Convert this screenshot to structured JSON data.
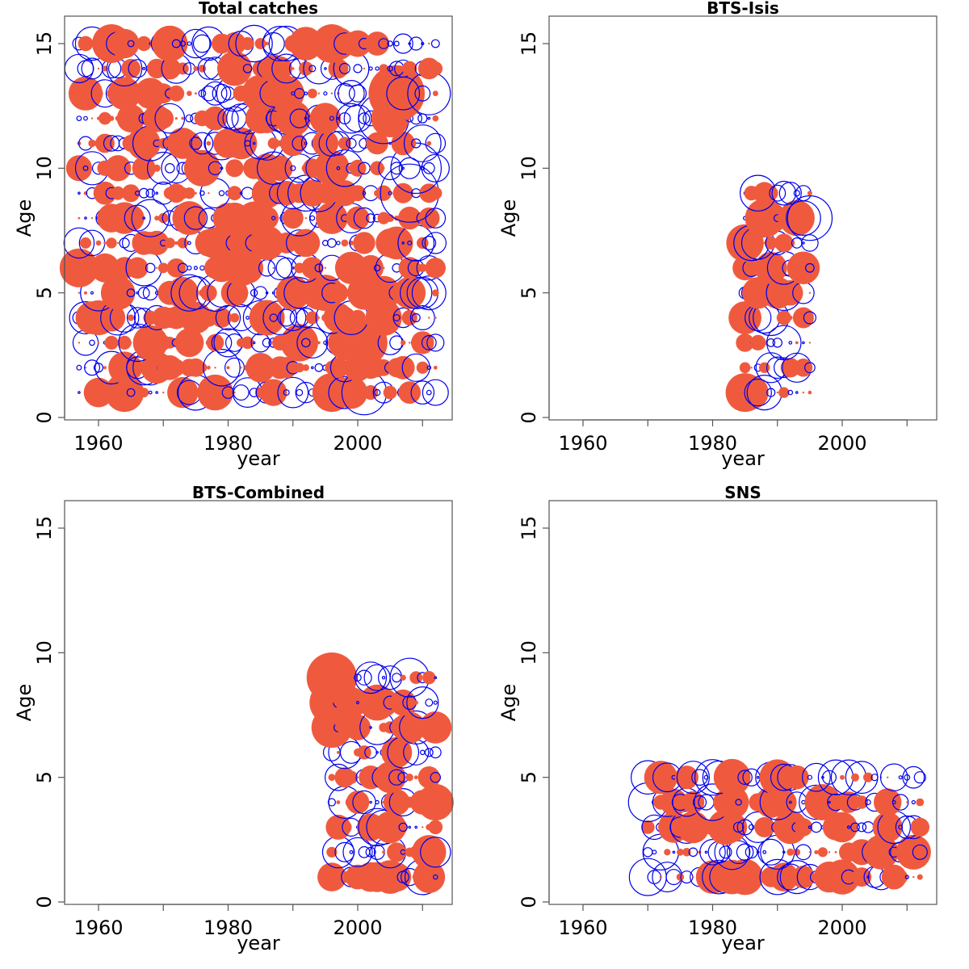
{
  "colors": {
    "positive": "#ef5a3f",
    "negative": "#0000ee",
    "frame": "#555555"
  },
  "chart_data": [
    {
      "type": "scatter",
      "title": "Total catches",
      "xlabel": "year",
      "ylabel": "Age",
      "xlim": [
        1955,
        2015
      ],
      "ylim": [
        0,
        16
      ],
      "xticks": [
        1960,
        1980,
        2000
      ],
      "yticks": [
        0,
        5,
        10,
        15
      ],
      "ages": [
        1,
        15
      ],
      "years": [
        1957,
        2012
      ],
      "encoding": "bubble size = |residual|; filled = positive, open = negative",
      "highlights": [
        {
          "x": 2008,
          "y": 9,
          "v": -3.0
        },
        {
          "x": 2006,
          "y": 13,
          "v": 2.9
        },
        {
          "x": 2009,
          "y": 10,
          "v": -2.6
        },
        {
          "x": 2004,
          "y": 12,
          "v": -2.6
        },
        {
          "x": 2001,
          "y": 3,
          "v": 2.4
        },
        {
          "x": 2001,
          "y": 1,
          "v": -2.3
        },
        {
          "x": 2011,
          "y": 13,
          "v": -2.2
        },
        {
          "x": 1996,
          "y": 15,
          "v": 2.0
        },
        {
          "x": 1962,
          "y": 15,
          "v": 2.0
        },
        {
          "x": 1964,
          "y": 1,
          "v": 2.0
        },
        {
          "x": 1996,
          "y": 1,
          "v": 2.0
        },
        {
          "x": 1957,
          "y": 6,
          "v": 2.0
        }
      ]
    },
    {
      "type": "scatter",
      "title": "BTS-Isis",
      "xlabel": "year",
      "ylabel": "Age",
      "xlim": [
        1955,
        2015
      ],
      "ylim": [
        0,
        16
      ],
      "xticks": [
        1960,
        1980,
        2000
      ],
      "yticks": [
        0,
        5,
        10,
        15
      ],
      "ages": [
        1,
        9
      ],
      "years": [
        1985,
        1995
      ],
      "encoding": "bubble size = |residual|; filled = positive, open = negative",
      "highlights": [
        {
          "x": 1995,
          "y": 8,
          "v": -2.3
        },
        {
          "x": 1985,
          "y": 1,
          "v": 2.0
        },
        {
          "x": 1988,
          "y": 8,
          "v": 2.0
        },
        {
          "x": 1991,
          "y": 6,
          "v": -1.7
        },
        {
          "x": 1993,
          "y": 2,
          "v": -1.5
        }
      ]
    },
    {
      "type": "scatter",
      "title": "BTS-Combined",
      "xlabel": "year",
      "ylabel": "Age",
      "xlim": [
        1955,
        2015
      ],
      "ylim": [
        0,
        16
      ],
      "xticks": [
        1960,
        1980,
        2000
      ],
      "yticks": [
        0,
        5,
        10,
        15
      ],
      "ages": [
        1,
        9
      ],
      "years": [
        1996,
        2012
      ],
      "encoding": "bubble size = |residual|; filled = positive, open = negative",
      "highlights": [
        {
          "x": 1996,
          "y": 9,
          "v": 2.6
        },
        {
          "x": 1996,
          "y": 8,
          "v": 2.3
        },
        {
          "x": 1996,
          "y": 7,
          "v": 2.1
        },
        {
          "x": 2008,
          "y": 9,
          "v": -2.0
        },
        {
          "x": 2006,
          "y": 1,
          "v": 1.5
        }
      ]
    },
    {
      "type": "scatter",
      "title": "SNS",
      "xlabel": "year",
      "ylabel": "Age",
      "xlim": [
        1955,
        2015
      ],
      "ylim": [
        0,
        16
      ],
      "xticks": [
        1960,
        1980,
        2000
      ],
      "yticks": [
        0,
        5,
        10,
        15
      ],
      "ages": [
        1,
        5
      ],
      "years": [
        1970,
        2012
      ],
      "encoding": "bubble size = |residual|; filled = positive, open = negative",
      "highlights": [
        {
          "x": 1970,
          "y": 4,
          "v": -2.0
        },
        {
          "x": 2001,
          "y": 5,
          "v": -1.8
        },
        {
          "x": 1983,
          "y": 5,
          "v": 1.9
        },
        {
          "x": 2011,
          "y": 2,
          "v": 1.8
        },
        {
          "x": 1990,
          "y": 4,
          "v": -1.8
        }
      ]
    }
  ]
}
